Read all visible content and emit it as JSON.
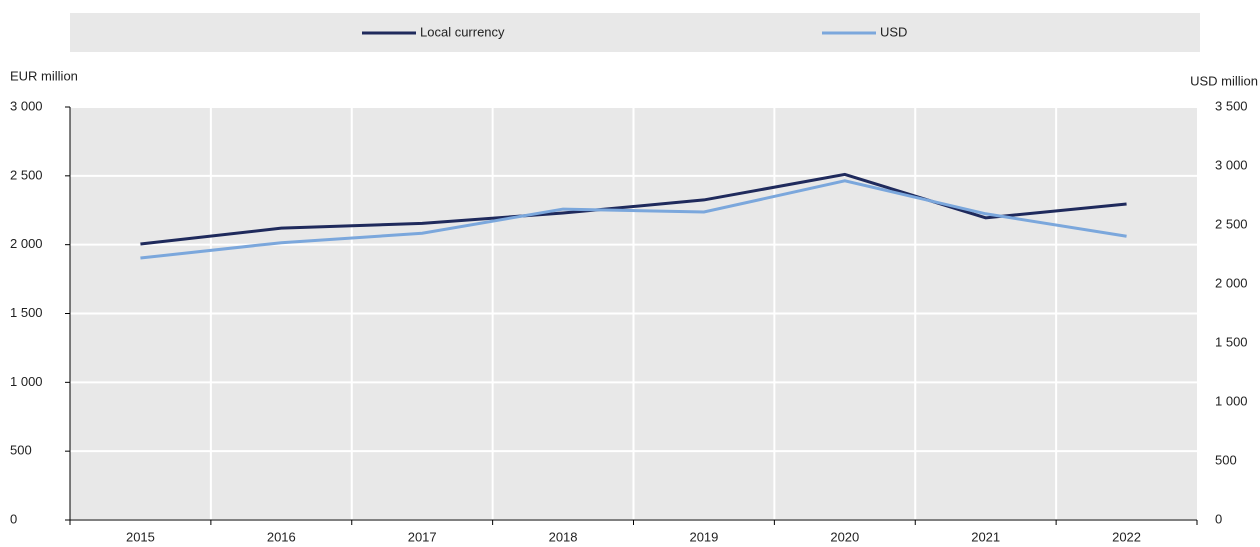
{
  "chart_data": {
    "type": "line",
    "y_label": "EUR million",
    "y2_label": "USD million",
    "categories": [
      "2015",
      "2016",
      "2017",
      "2018",
      "2019",
      "2020",
      "2021",
      "2022"
    ],
    "series": [
      {
        "name": "Local currency",
        "color": "#1f2a5c",
        "values": [
          2005,
          2120,
          2155,
          2230,
          2325,
          2510,
          2195,
          2295
        ]
      },
      {
        "name": "USD",
        "color": "#7ba7dc",
        "axis": "y2",
        "values": [
          2220,
          2350,
          2430,
          2635,
          2610,
          2875,
          2595,
          2405
        ]
      }
    ],
    "ylim": [
      0,
      3000
    ],
    "yticks": [
      0,
      500,
      {
        "value": 1000,
        "label": "1 000"
      },
      {
        "value": 1500,
        "label": "1 500"
      },
      {
        "value": 2000,
        "label": "2 000"
      },
      {
        "value": 2500,
        "label": "2 500"
      },
      {
        "value": 3000,
        "label": "3 000"
      }
    ],
    "y2lim": [
      0,
      3500
    ],
    "y2ticks": [
      0,
      500,
      {
        "value": 1000,
        "label": "1 000"
      },
      {
        "value": 1500,
        "label": "1 500"
      },
      {
        "value": 2000,
        "label": "2 000"
      },
      {
        "value": 2500,
        "label": "2 500"
      },
      {
        "value": 3000,
        "label": "3 000"
      },
      {
        "value": 3500,
        "label": "3 500"
      }
    ],
    "grid": true,
    "legend": "top"
  }
}
